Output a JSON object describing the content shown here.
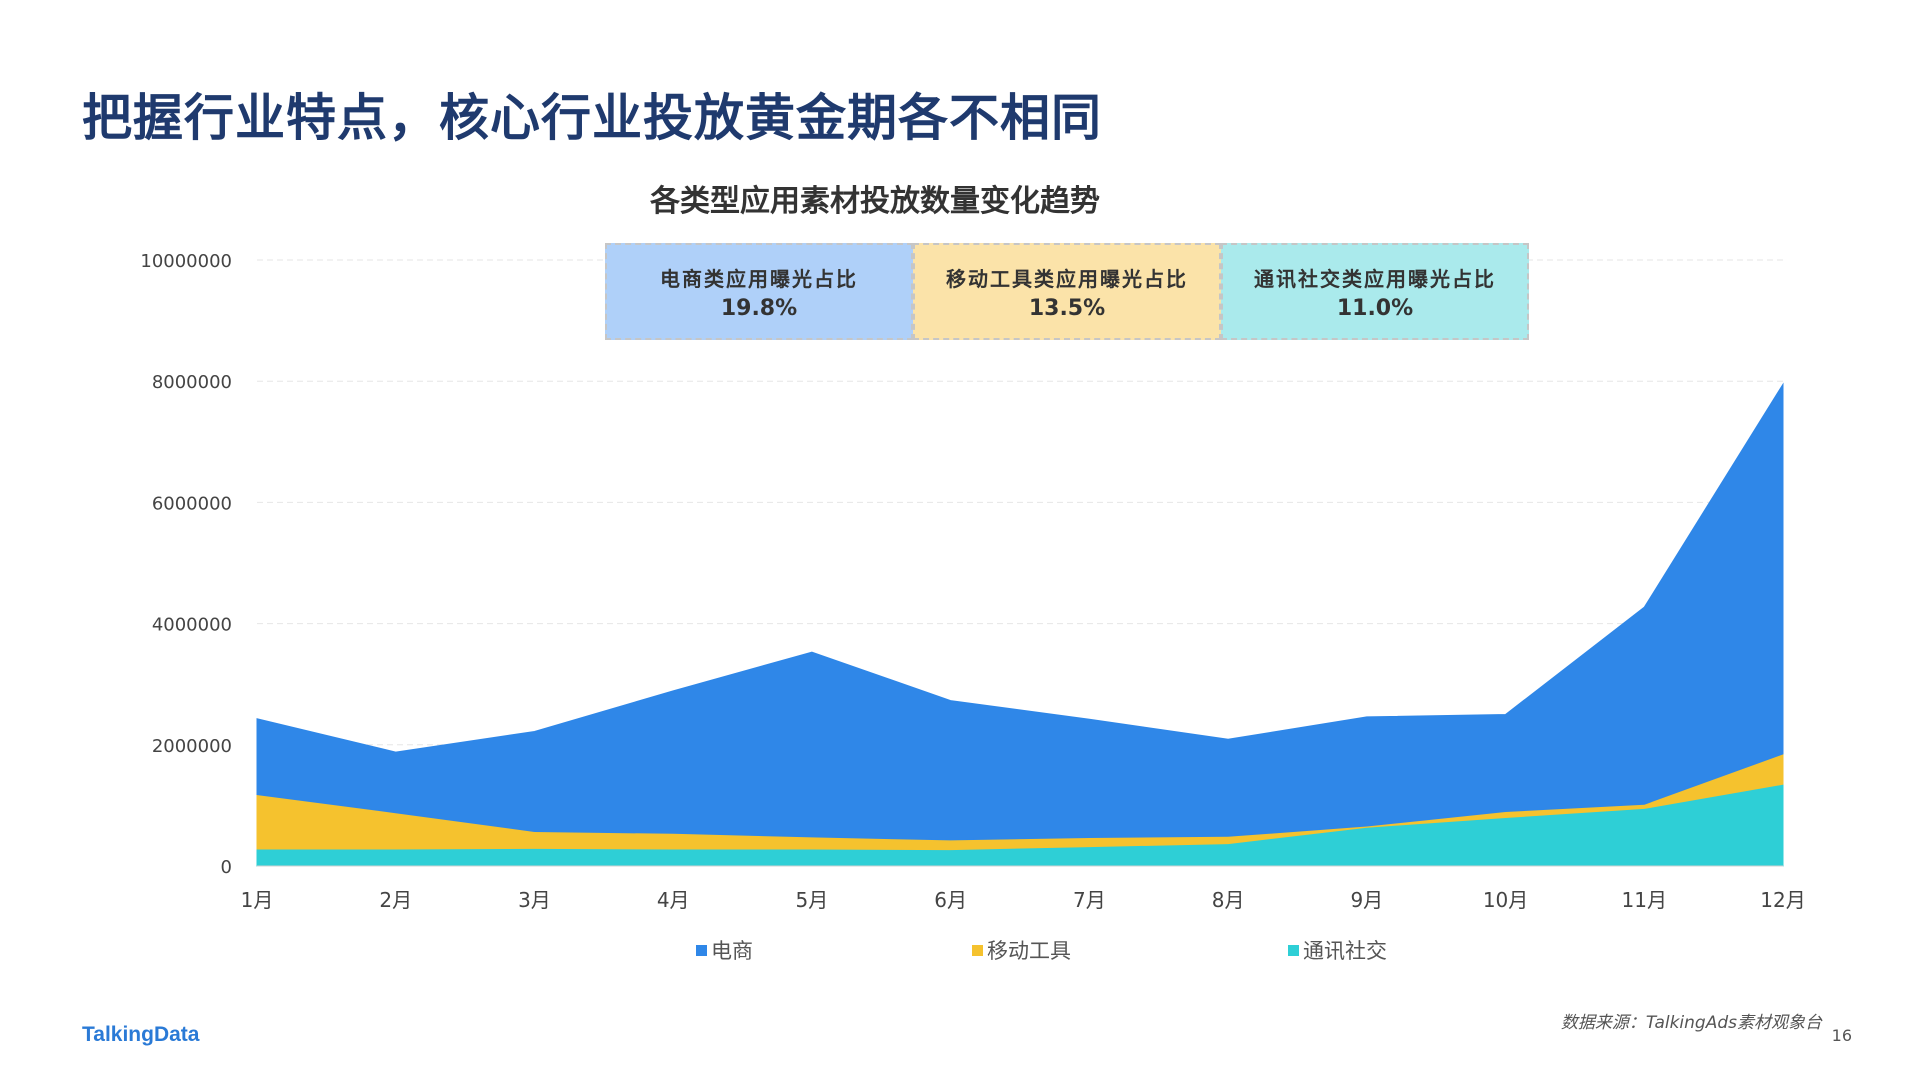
{
  "page": {
    "title": "把握行业特点，核心行业投放黄金期各不相同",
    "source": "数据来源：TalkingAds素材观象台",
    "page_number": "16",
    "logo": "TalkingData"
  },
  "stats": [
    {
      "label": "电商类应用曝光占比",
      "value": "19.8%",
      "color": "#afd0f9"
    },
    {
      "label": "移动工具类应用曝光占比",
      "value": "13.5%",
      "color": "#fbe3a9"
    },
    {
      "label": "通讯社交类应用曝光占比",
      "value": "11.0%",
      "color": "#aaeaec"
    }
  ],
  "chart_data": {
    "type": "area",
    "stacked": true,
    "title": "各类型应用素材投放数量变化趋势",
    "xlabel": "",
    "ylabel": "",
    "categories": [
      "1月",
      "2月",
      "3月",
      "4月",
      "5月",
      "6月",
      "7月",
      "8月",
      "9月",
      "10月",
      "11月",
      "12月"
    ],
    "ylim": [
      0,
      10000000
    ],
    "yticks": [
      0,
      2000000,
      4000000,
      6000000,
      8000000,
      10000000
    ],
    "ytick_labels": [
      "0",
      "2000000",
      "4000000",
      "6000000",
      "8000000",
      "10000000"
    ],
    "grid": true,
    "legend_position": "bottom",
    "series": [
      {
        "name": "电商",
        "color": "#2f87e8",
        "values": [
          1250000,
          1000000,
          1650000,
          2350000,
          3050000,
          2300000,
          1950000,
          1600000,
          1800000,
          1600000,
          3250000,
          6100000
        ]
      },
      {
        "name": "移动工具",
        "color": "#f5c22e",
        "values": [
          900000,
          600000,
          280000,
          260000,
          200000,
          160000,
          150000,
          120000,
          20000,
          100000,
          70000,
          500000
        ]
      },
      {
        "name": "通讯社交",
        "color": "#2ecfd6",
        "values": [
          280000,
          280000,
          290000,
          280000,
          280000,
          270000,
          320000,
          370000,
          640000,
          800000,
          950000,
          1350000
        ]
      }
    ]
  }
}
